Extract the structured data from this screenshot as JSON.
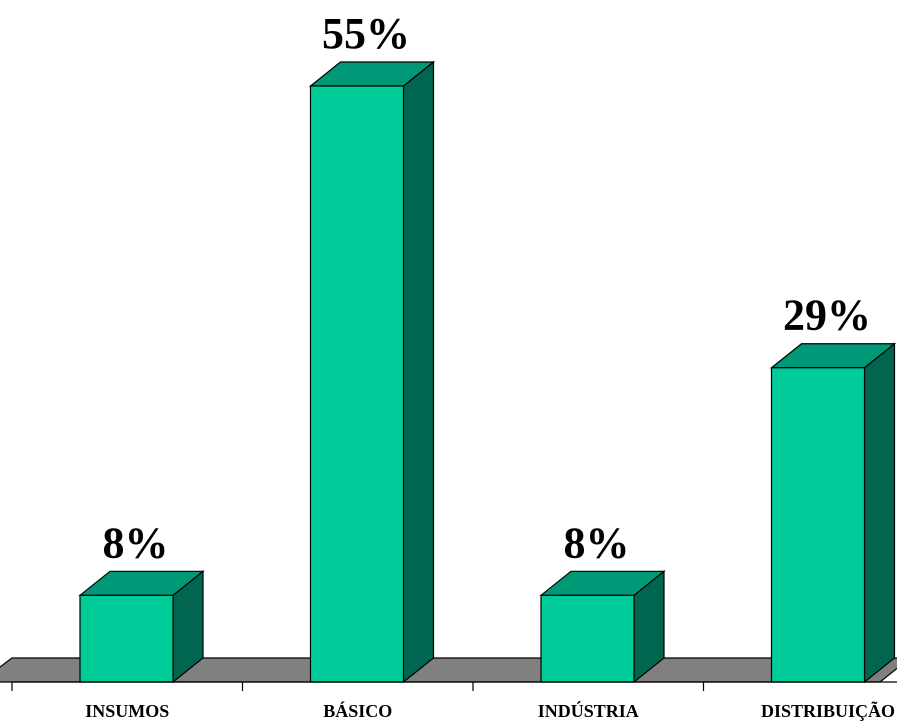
{
  "chart_data": {
    "type": "bar",
    "categories": [
      "INSUMOS",
      "BÁSICO",
      "INDÚSTRIA",
      "DISTRIBUIÇÃO"
    ],
    "values": [
      8,
      55,
      8,
      29
    ],
    "data_labels": [
      "8%",
      "55%",
      "8%",
      "29%"
    ],
    "title": "",
    "xlabel": "",
    "ylabel": "",
    "ylim": [
      0,
      55
    ],
    "grid": false,
    "legend": "none",
    "style": "3d",
    "colors": {
      "bar_front": "#00CC99",
      "bar_top": "#009977",
      "bar_side": "#006650",
      "floor": "#808080",
      "outline": "#000000"
    }
  }
}
